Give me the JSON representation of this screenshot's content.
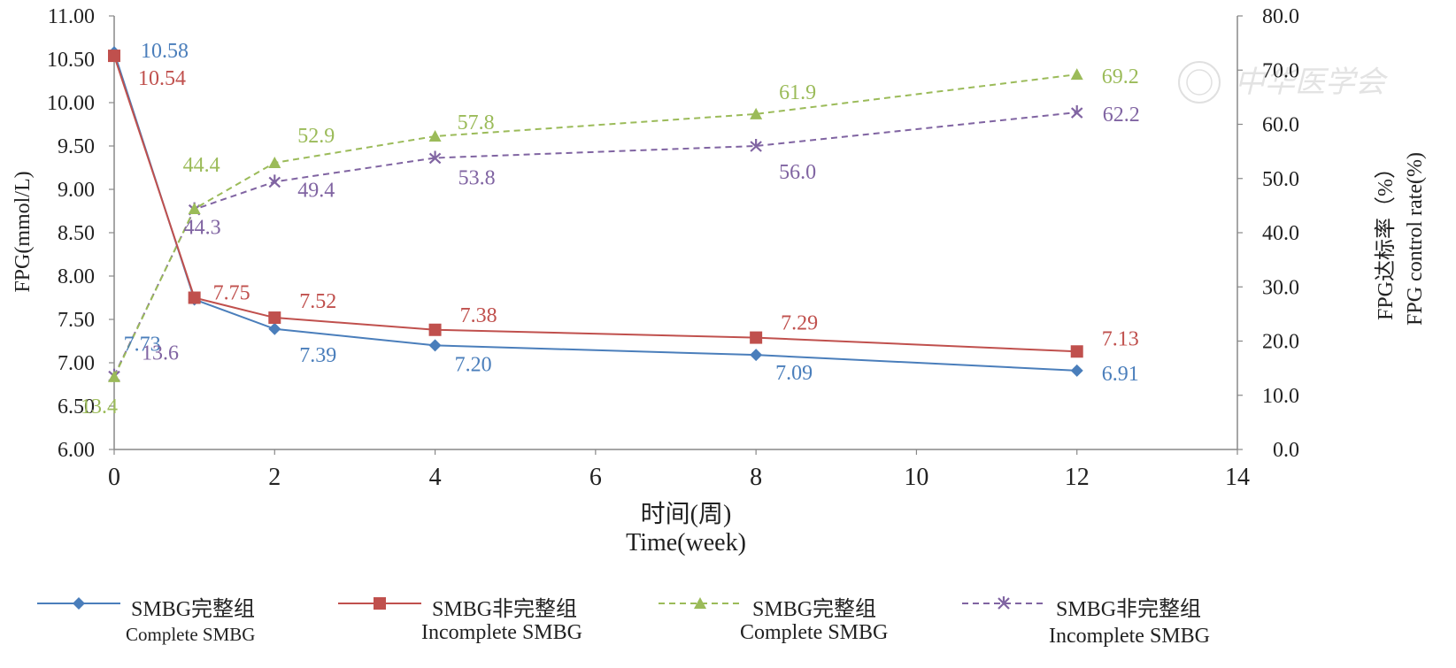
{
  "chart_data": {
    "type": "line",
    "xlabel": "时间(周)",
    "xlabel_en": "Time(week)",
    "ylabel_left": "FPG(mmol/L)",
    "ylabel_right": "FPG达标率（%）",
    "ylabel_right_en": "FPG control rate(%)",
    "xlim": [
      0,
      14
    ],
    "xticks": [
      0,
      2,
      4,
      6,
      8,
      10,
      12,
      14
    ],
    "ylim_left": [
      6.0,
      11.0
    ],
    "yticks_left": [
      "6.00",
      "6.50",
      "7.00",
      "7.50",
      "8.00",
      "8.50",
      "9.00",
      "9.50",
      "10.00",
      "10.50",
      "11.00"
    ],
    "ylim_right": [
      0,
      80
    ],
    "yticks_right": [
      "0.0",
      "10.0",
      "20.0",
      "30.0",
      "40.0",
      "50.0",
      "60.0",
      "70.0",
      "80.0"
    ],
    "grid": false,
    "legend_position": "bottom",
    "watermark": "中华医学会",
    "series": [
      {
        "name": "SMBG完整组",
        "name_en": "Complete SMBG",
        "axis": "left",
        "color": "#4a7ebb",
        "line_style": "solid",
        "marker": "diamond",
        "x": [
          0,
          1,
          2,
          4,
          8,
          12
        ],
        "values": [
          10.58,
          7.73,
          7.39,
          7.2,
          7.09,
          6.91
        ],
        "labels": [
          "10.58",
          "7.73",
          "7.39",
          "7.20",
          "7.09",
          "6.91"
        ]
      },
      {
        "name": "SMBG非完整组",
        "name_en": "Incomplete  SMBG",
        "axis": "left",
        "color": "#c0504d",
        "line_style": "solid",
        "marker": "square",
        "x": [
          0,
          1,
          2,
          4,
          8,
          12
        ],
        "values": [
          10.54,
          7.75,
          7.52,
          7.38,
          7.29,
          7.13
        ],
        "labels": [
          "10.54",
          "7.75",
          "7.52",
          "7.38",
          "7.29",
          "7.13"
        ]
      },
      {
        "name": "SMBG完整组",
        "name_en": "Complete SMBG",
        "axis": "right",
        "color": "#9bbb59",
        "line_style": "dashed",
        "marker": "triangle",
        "x": [
          0,
          1,
          2,
          4,
          8,
          12
        ],
        "values": [
          13.4,
          44.4,
          52.9,
          57.8,
          61.9,
          69.2
        ],
        "labels": [
          "13.4",
          "44.4",
          "52.9",
          "57.8",
          "61.9",
          "69.2"
        ]
      },
      {
        "name": "SMBG非完整组",
        "name_en": "Incomplete  SMBG",
        "axis": "right",
        "color": "#8064a2",
        "line_style": "dashed",
        "marker": "star",
        "x": [
          0,
          1,
          2,
          4,
          8,
          12
        ],
        "values": [
          13.6,
          44.3,
          49.4,
          53.8,
          56.0,
          62.2
        ],
        "labels": [
          "13.6",
          "44.3",
          "49.4",
          "53.8",
          "56.0",
          "62.2"
        ]
      }
    ]
  }
}
